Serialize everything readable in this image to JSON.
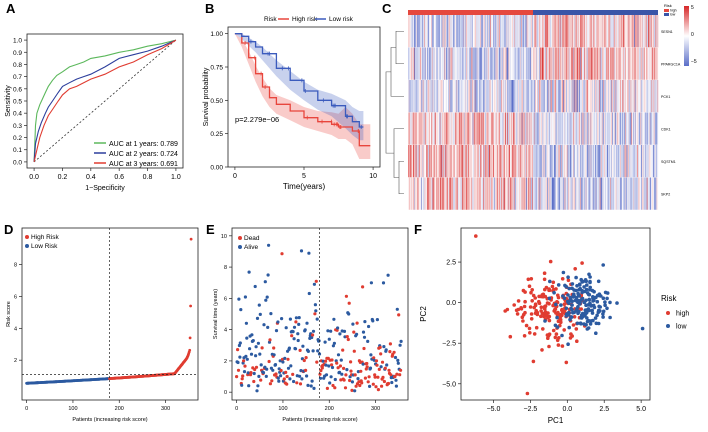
{
  "chart_data": [
    {
      "panel": "A",
      "type": "line",
      "title": "",
      "xlabel": "1−Specificity",
      "ylabel": "Sensitivity",
      "xlim": [
        -0.05,
        1.05
      ],
      "ylim": [
        -0.05,
        1.05
      ],
      "xticks": [
        "0.0",
        "0.2",
        "0.4",
        "0.6",
        "0.8",
        "1.0"
      ],
      "yticks": [
        "0.0",
        "0.1",
        "0.2",
        "0.3",
        "0.4",
        "0.5",
        "0.6",
        "0.7",
        "0.8",
        "0.9",
        "1.0"
      ],
      "legend": "bottom-right",
      "series": [
        {
          "name": "AUC at 1 years: 0.789",
          "color": "#5cb85c",
          "x": [
            0,
            0.01,
            0.02,
            0.04,
            0.06,
            0.08,
            0.1,
            0.13,
            0.16,
            0.2,
            0.25,
            0.3,
            0.35,
            0.4,
            0.5,
            0.6,
            0.7,
            0.8,
            0.9,
            1.0
          ],
          "y": [
            0,
            0.3,
            0.4,
            0.47,
            0.52,
            0.57,
            0.62,
            0.67,
            0.71,
            0.74,
            0.78,
            0.8,
            0.82,
            0.85,
            0.87,
            0.9,
            0.92,
            0.95,
            0.97,
            1.0
          ]
        },
        {
          "name": "AUC at 2 years: 0.724",
          "color": "#2c3e9c",
          "x": [
            0,
            0.01,
            0.03,
            0.05,
            0.08,
            0.1,
            0.13,
            0.17,
            0.2,
            0.25,
            0.3,
            0.35,
            0.4,
            0.5,
            0.6,
            0.7,
            0.8,
            0.9,
            1.0
          ],
          "y": [
            0,
            0.15,
            0.25,
            0.32,
            0.4,
            0.45,
            0.5,
            0.57,
            0.62,
            0.65,
            0.68,
            0.7,
            0.72,
            0.78,
            0.85,
            0.88,
            0.91,
            0.95,
            1.0
          ]
        },
        {
          "name": "AUC at 3 years: 0.691",
          "color": "#e03c31",
          "x": [
            0,
            0.02,
            0.04,
            0.07,
            0.1,
            0.13,
            0.17,
            0.2,
            0.25,
            0.3,
            0.35,
            0.4,
            0.5,
            0.6,
            0.7,
            0.8,
            0.9,
            1.0
          ],
          "y": [
            0,
            0.1,
            0.2,
            0.3,
            0.38,
            0.43,
            0.5,
            0.55,
            0.6,
            0.62,
            0.65,
            0.68,
            0.72,
            0.78,
            0.82,
            0.88,
            0.93,
            1.0
          ]
        }
      ]
    },
    {
      "panel": "B",
      "type": "line",
      "xlabel": "Time(years)",
      "ylabel": "Survival probability",
      "xlim": [
        -0.5,
        10.5
      ],
      "ylim": [
        0,
        1.05
      ],
      "xticks": [
        "0",
        "5",
        "10"
      ],
      "yticks": [
        "0.00",
        "0.25",
        "0.50",
        "0.75",
        "1.00"
      ],
      "legend_title": "Risk",
      "annotation": "p=2.279e−06",
      "series": [
        {
          "name": "High risk",
          "color": "#e8453c",
          "x": [
            0,
            0.5,
            1,
            1.5,
            2,
            2.5,
            3,
            4,
            5,
            6,
            7,
            7.5,
            8,
            8.5,
            9,
            9.8
          ],
          "y": [
            1,
            0.93,
            0.82,
            0.7,
            0.6,
            0.52,
            0.47,
            0.42,
            0.37,
            0.34,
            0.32,
            0.3,
            0.3,
            0.27,
            0.16,
            0.16
          ],
          "lower": [
            1,
            0.9,
            0.77,
            0.64,
            0.53,
            0.45,
            0.4,
            0.35,
            0.3,
            0.27,
            0.24,
            0.21,
            0.21,
            0.17,
            0.06,
            0.06
          ],
          "upper": [
            1,
            0.96,
            0.87,
            0.76,
            0.67,
            0.59,
            0.54,
            0.5,
            0.45,
            0.42,
            0.41,
            0.4,
            0.45,
            0.4,
            0.32,
            0.32
          ]
        },
        {
          "name": "Low risk",
          "color": "#3b5bbd",
          "x": [
            0,
            0.5,
            1,
            1.5,
            2,
            3,
            4,
            5,
            6,
            7,
            8,
            8.5,
            9,
            9.3
          ],
          "y": [
            1,
            0.98,
            0.94,
            0.9,
            0.85,
            0.74,
            0.65,
            0.57,
            0.5,
            0.46,
            0.38,
            0.34,
            0.3,
            0.3
          ],
          "lower": [
            1,
            0.96,
            0.91,
            0.86,
            0.8,
            0.68,
            0.58,
            0.5,
            0.43,
            0.38,
            0.29,
            0.24,
            0.2,
            0.2
          ],
          "upper": [
            1,
            1,
            0.97,
            0.94,
            0.9,
            0.8,
            0.72,
            0.64,
            0.58,
            0.55,
            0.5,
            0.45,
            0.42,
            0.42
          ]
        }
      ]
    },
    {
      "panel": "C",
      "type": "heatmap",
      "legend_title": "Risk",
      "risk_labels": [
        "high",
        "low"
      ],
      "genes": [
        "SESN1",
        "PPARGC1A",
        "PCK1",
        "CDK1",
        "SQSTM1",
        "SKP2"
      ],
      "color_ticks": [
        "5",
        "0",
        "−5"
      ],
      "n_patients": 356
    },
    {
      "panel": "D",
      "type": "scatter",
      "xlabel": "Patients (increasing risk score)",
      "ylabel": "Risk score",
      "xlim": [
        -10,
        370
      ],
      "ylim": [
        -0.5,
        10.3
      ],
      "xticks": [
        "0",
        "100",
        "200",
        "300"
      ],
      "yticks": [
        "2",
        "4",
        "6",
        "8"
      ],
      "cutoff_patient": 179,
      "cutoff_score": 1.1,
      "legend": [
        "High Risk",
        "Low Risk"
      ],
      "colors": {
        "high": "#e03c31",
        "low": "#2c5aa0"
      }
    },
    {
      "panel": "E",
      "type": "scatter",
      "xlabel": "Patients (increasing risk score)",
      "ylabel": "Survival time (years)",
      "xlim": [
        -10,
        370
      ],
      "ylim": [
        -0.5,
        10.5
      ],
      "xticks": [
        "0",
        "100",
        "200",
        "300"
      ],
      "yticks": [
        "0",
        "2",
        "4",
        "6",
        "8",
        "10"
      ],
      "cutoff_patient": 179,
      "legend": [
        "Dead",
        "Alive"
      ],
      "colors": {
        "dead": "#e03c31",
        "alive": "#2c5aa0"
      }
    },
    {
      "panel": "F",
      "type": "scatter",
      "xlabel": "PC1",
      "ylabel": "PC2",
      "xlim": [
        -7.2,
        5.6
      ],
      "ylim": [
        -6.0,
        4.6
      ],
      "xticks": [
        "−5.0",
        "−2.5",
        "0.0",
        "2.5",
        "5.0"
      ],
      "yticks": [
        "−5.0",
        "−2.5",
        "0.0",
        "2.5"
      ],
      "legend_title": "Risk",
      "legend": [
        "high",
        "low"
      ],
      "colors": {
        "high": "#e03c31",
        "low": "#2c5aa0"
      }
    }
  ],
  "panel_labels": [
    "A",
    "B",
    "C",
    "D",
    "E",
    "F"
  ]
}
